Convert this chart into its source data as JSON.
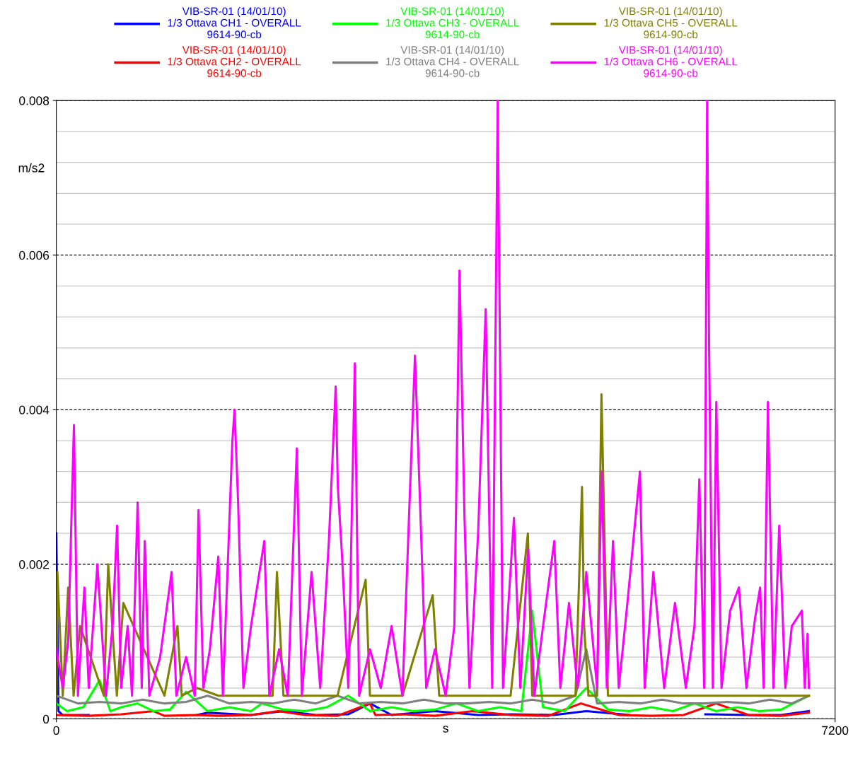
{
  "chart_data": {
    "type": "line",
    "xlabel": "s",
    "ylabel": "m/s2",
    "xlim": [
      0,
      7200
    ],
    "xticks": [
      0,
      7200
    ],
    "ylim": [
      0,
      0.008
    ],
    "yticks": [
      0,
      {
        "value": 0.0004,
        "label": null
      },
      {
        "value": 0.0008,
        "label": null
      },
      {
        "value": 0.0012,
        "label": null
      },
      {
        "value": 0.0016,
        "label": null
      },
      0.002,
      {
        "value": 0.0024,
        "label": null
      },
      {
        "value": 0.0028,
        "label": null
      },
      {
        "value": 0.0032,
        "label": null
      },
      {
        "value": 0.0036,
        "label": null
      },
      0.004,
      {
        "value": 0.0044,
        "label": null
      },
      {
        "value": 0.0048,
        "label": null
      },
      {
        "value": 0.0052,
        "label": null
      },
      {
        "value": 0.0056,
        "label": null
      },
      0.006,
      {
        "value": 0.0064,
        "label": null
      },
      {
        "value": 0.0068,
        "label": null
      },
      {
        "value": 0.0072,
        "label": null
      },
      {
        "value": 0.0076,
        "label": null
      },
      0.008
    ],
    "grid": "y",
    "legend": "top",
    "line_style": "solid",
    "marker": "none",
    "series": [
      {
        "name": "VIB-SR-01 (14/01/10)\n1/3 Ottava CH1 - OVERALL\n9614-90-cb",
        "color": "#0000ff",
        "x": [
          0,
          20,
          60,
          300,
          600,
          900,
          1300,
          1400,
          1800,
          2100,
          2400,
          2700,
          2900,
          3100,
          3500,
          3900,
          4200,
          4600,
          4900,
          5300,
          5700,
          6000,
          6400,
          6700,
          6958
        ],
        "values": [
          0.0024,
          0.0001,
          5e-05,
          5e-05,
          null,
          null,
          5e-05,
          8e-05,
          5e-05,
          0.0001,
          5e-05,
          6e-05,
          0.0002,
          5e-05,
          0.0001,
          5e-05,
          6e-05,
          5e-05,
          0.0001,
          5e-05,
          null,
          6e-05,
          5e-05,
          5e-05,
          0.0001
        ]
      },
      {
        "name": "VIB-SR-01 (14/01/10)\n1/3 Ottava CH2 - OVERALL\n9614-90-cb",
        "color": "#ff0000",
        "x": [
          0,
          300,
          600,
          900,
          1000,
          1300,
          1500,
          1800,
          2050,
          2300,
          2600,
          2900,
          2950,
          3200,
          3500,
          3850,
          4200,
          4550,
          4850,
          5200,
          5500,
          5800,
          6100,
          6400,
          6700,
          6958
        ],
        "values": [
          5e-05,
          4e-05,
          6e-05,
          0.0001,
          4e-05,
          5e-05,
          4e-05,
          5e-05,
          0.0001,
          5e-05,
          4e-05,
          0.0002,
          5e-05,
          6e-05,
          4e-05,
          0.0001,
          5e-05,
          4e-05,
          0.0002,
          5e-05,
          4e-05,
          5e-05,
          0.0002,
          5e-05,
          4e-05,
          8e-05
        ]
      },
      {
        "name": "VIB-SR-01 (14/01/10)\n1/3 Ottava CH3 - OVERALL\n9614-90-cb",
        "color": "#00ff00",
        "x": [
          0,
          100,
          250,
          400,
          500,
          600,
          750,
          900,
          1050,
          1200,
          1400,
          1600,
          1800,
          1900,
          2100,
          2300,
          2500,
          2700,
          2900,
          3100,
          3300,
          3500,
          3700,
          3900,
          4100,
          4300,
          4400,
          4500,
          4700,
          4900,
          5100,
          5300,
          5500,
          5700,
          5900,
          6100,
          6300,
          6500,
          6700,
          6958
        ],
        "values": [
          0.0002,
          0.0001,
          0.00015,
          0.0005,
          0.0001,
          0.00015,
          0.0002,
          0.0001,
          0.00012,
          0.00035,
          0.0001,
          0.00015,
          0.0001,
          0.0002,
          0.00012,
          0.0001,
          0.00015,
          0.0003,
          0.0001,
          0.00015,
          0.0001,
          0.00012,
          0.0002,
          0.0001,
          0.00015,
          0.0001,
          0.0014,
          0.00015,
          0.0001,
          0.0004,
          0.00012,
          0.0001,
          0.00015,
          0.0001,
          0.0002,
          0.0001,
          0.00015,
          0.0001,
          0.00012,
          0.0003
        ]
      },
      {
        "name": "VIB-SR-01 (14/01/10)\n1/3 Ottava CH4 - OVERALL\n9614-90-cb",
        "color": "#808080",
        "x": [
          0,
          200,
          400,
          600,
          800,
          1000,
          1200,
          1400,
          1600,
          1800,
          2000,
          2200,
          2400,
          2600,
          2800,
          3000,
          3200,
          3400,
          3600,
          3800,
          4000,
          4200,
          4400,
          4600,
          4800,
          4900,
          5000,
          5200,
          5400,
          5600,
          5800,
          6000,
          6200,
          6400,
          6600,
          6800,
          6958
        ],
        "values": [
          0.0003,
          0.0002,
          0.00022,
          0.0002,
          0.00025,
          0.0002,
          0.00022,
          0.0003,
          0.0002,
          0.00022,
          0.0002,
          0.00025,
          0.0002,
          0.0003,
          0.0002,
          0.00022,
          0.0002,
          0.00025,
          0.0002,
          0.0002,
          0.00022,
          0.0002,
          0.00025,
          0.0002,
          0.0003,
          0.0009,
          0.0002,
          0.00022,
          0.0002,
          0.00025,
          0.0002,
          0.0002,
          0.00022,
          0.0002,
          0.00025,
          0.0002,
          0.0003
        ]
      },
      {
        "name": "VIB-SR-01 (14/01/10)\n1/3 Ottava CH5 - OVERALL\n9614-90-cb",
        "color": "#808000",
        "x": [
          0,
          10,
          60,
          110,
          160,
          220,
          440,
          480,
          560,
          620,
          1000,
          1120,
          1160,
          1300,
          1500,
          2000,
          2040,
          2100,
          2600,
          2860,
          2900,
          3200,
          3480,
          3540,
          3600,
          4200,
          4360,
          4400,
          4800,
          4860,
          4880,
          4920,
          5000,
          5040,
          5060,
          5100,
          5500,
          6000,
          6500,
          6958
        ],
        "values": [
          0.0003,
          0.0019,
          0.0003,
          0.0017,
          0.0003,
          0.0012,
          0.0003,
          0.002,
          0.0003,
          0.0015,
          0.0003,
          0.0012,
          0.0003,
          0.0004,
          0.0003,
          0.0003,
          0.0019,
          0.0003,
          0.0003,
          0.0018,
          0.0003,
          0.0003,
          0.0016,
          0.0003,
          0.0003,
          0.0003,
          0.0024,
          0.0003,
          0.0003,
          0.003,
          0.0012,
          0.0003,
          0.0003,
          0.0042,
          0.0029,
          0.0003,
          0.0003,
          0.0003,
          0.0003,
          0.0003
        ]
      },
      {
        "name": "VIB-SR-01 (14/01/10)\n1/3 Ottava CH6 - OVERALL\n9614-90-cb",
        "color": "#ff00ff",
        "x": [
          0,
          60,
          110,
          163,
          200,
          260,
          300,
          380,
          460,
          520,
          562,
          600,
          660,
          700,
          752,
          790,
          818,
          860,
          960,
          1066,
          1110,
          1200,
          1280,
          1315,
          1360,
          1420,
          1498,
          1540,
          1628,
          1648,
          1681,
          1730,
          1800,
          1923,
          1970,
          2060,
          2140,
          2224,
          2270,
          2360,
          2440,
          2520,
          2583,
          2603,
          2642,
          2700,
          2760,
          2800,
          2900,
          3000,
          3100,
          3200,
          3316,
          3375,
          3420,
          3500,
          3600,
          3680,
          3728,
          3774,
          3820,
          3900,
          3970,
          4030,
          4081,
          4130,
          4231,
          4290,
          4362,
          4420,
          4500,
          4604,
          4660,
          4740,
          4820,
          4900,
          5000,
          5042,
          5090,
          5147,
          5200,
          5280,
          5396,
          5440,
          5520,
          5620,
          5720,
          5820,
          5900,
          5945,
          5990,
          6017,
          6036,
          6070,
          6102,
          6150,
          6230,
          6311,
          6380,
          6460,
          6507,
          6540,
          6579,
          6630,
          6684,
          6740,
          6800,
          6893,
          6920,
          6945,
          6958
        ],
        "values": [
          0.0009,
          0.0004,
          0.001,
          0.0038,
          0.0003,
          0.0017,
          0.0004,
          0.002,
          0.0003,
          0.0012,
          0.0025,
          0.0004,
          0.0012,
          0.0003,
          0.0028,
          0.0004,
          0.0023,
          0.0003,
          0.0008,
          0.0019,
          0.0003,
          0.0008,
          0.0003,
          0.0027,
          0.0004,
          0.0009,
          0.0021,
          0.0003,
          0.0036,
          0.004,
          0.0028,
          0.0004,
          0.0012,
          0.0023,
          0.0003,
          0.0009,
          0.0003,
          0.0035,
          0.0003,
          0.0019,
          0.0004,
          0.0023,
          0.0043,
          0.003,
          0.0021,
          0.0004,
          0.0046,
          0.0003,
          0.0009,
          0.0004,
          0.0012,
          0.0003,
          0.0047,
          0.0023,
          0.0004,
          0.0009,
          0.0003,
          0.0012,
          0.0058,
          0.0026,
          0.0004,
          0.0024,
          0.0053,
          0.0004,
          0.008,
          0.0004,
          0.0026,
          0.0004,
          0.0022,
          0.0003,
          0.0012,
          0.0023,
          0.0004,
          0.0015,
          0.0004,
          0.0019,
          0.0004,
          0.0032,
          0.0004,
          0.0023,
          0.0004,
          0.0015,
          0.0032,
          0.0004,
          0.0019,
          0.0004,
          0.0015,
          0.0004,
          0.0012,
          0.0031,
          0.0004,
          0.008,
          0.0047,
          0.0004,
          0.0041,
          0.0004,
          0.0014,
          0.0017,
          0.0004,
          0.0013,
          0.0017,
          0.0004,
          0.0041,
          0.0004,
          0.0025,
          0.0004,
          0.0012,
          0.0014,
          0.0004,
          0.0011,
          0.0004
        ]
      }
    ]
  }
}
